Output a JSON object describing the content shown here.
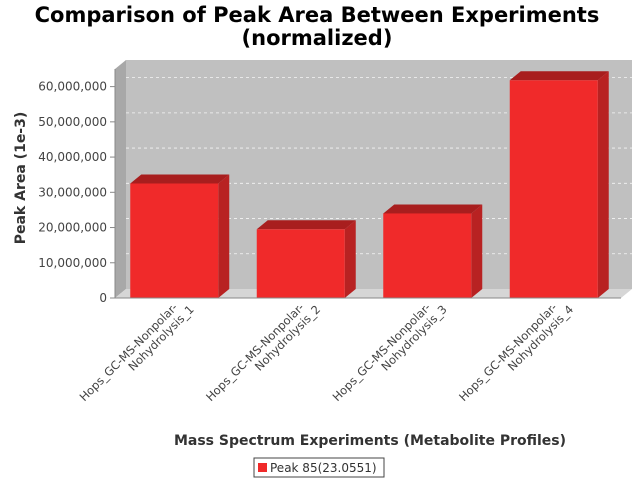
{
  "chart_data": {
    "type": "bar",
    "title": [
      "Comparison of Peak Area Between Experiments",
      "(normalized)"
    ],
    "xlabel": "Mass Spectrum Experiments (Metabolite Profiles)",
    "ylabel": "Peak Area (1e-3)",
    "ylim": [
      0,
      65000000
    ],
    "yticks": [
      0,
      10000000,
      20000000,
      30000000,
      40000000,
      50000000,
      60000000
    ],
    "ytick_labels": [
      "0",
      "10,000,000",
      "20,000,000",
      "30,000,000",
      "40,000,000",
      "50,000,000",
      "60,000,000"
    ],
    "categories": [
      [
        "Hops_GC-MS-Nonpolar-",
        "Nohydrolysis_1"
      ],
      [
        "Hops_GC-MS-Nonpolar-",
        "Nohydrolysis_2"
      ],
      [
        "Hops_GC-MS-Nonpolar-",
        "Nohydrolysis_3"
      ],
      [
        "Hops_GC-MS-Nonpolar-",
        "Nohydrolysis_4"
      ]
    ],
    "series": [
      {
        "name": "Peak 85(23.0551)",
        "values": [
          32500000,
          19500000,
          24000000,
          61800000
        ],
        "color": "#f02a2a"
      }
    ],
    "grid": true,
    "legend_position": "bottom"
  }
}
